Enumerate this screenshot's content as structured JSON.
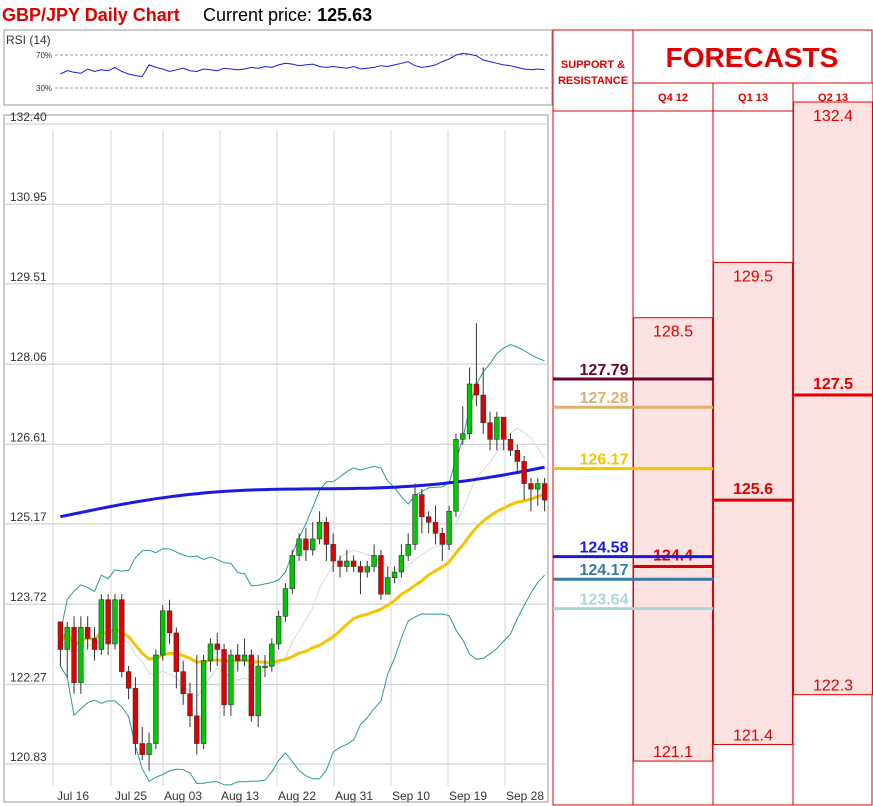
{
  "header": {
    "title": "GBP/JPY Daily Chart",
    "price_label": "Current price:",
    "price_value": "125.63"
  },
  "colors": {
    "up": "#00c800",
    "down": "#e00000",
    "sma_long": "#1a1ae6",
    "sma_short": "#f5c400",
    "bollinger": "#2a9a9a",
    "forecast_fill": "#fde2e2",
    "forecast_border": "#e00000"
  },
  "chart_data": [
    {
      "type": "candlestick",
      "title": "GBP/JPY Daily Chart",
      "ylim": [
        120.6,
        132.4
      ],
      "y_ticks": [
        "132.40",
        "130.95",
        "129.51",
        "128.06",
        "126.61",
        "125.17",
        "123.72",
        "122.27",
        "120.83"
      ],
      "x_ticks": [
        "Jul 16",
        "Jul 25",
        "Aug 03",
        "Aug 13",
        "Aug 22",
        "Aug 31",
        "Sep 10",
        "Sep 19",
        "Sep 28"
      ],
      "candles": [
        [
          123.4,
          122.9,
          123.4,
          122.6
        ],
        [
          122.9,
          123.3,
          123.4,
          122.4
        ],
        [
          123.3,
          122.3,
          123.5,
          122.1
        ],
        [
          122.3,
          123.3,
          123.5,
          122.1
        ],
        [
          123.3,
          123.1,
          123.5,
          122.9
        ],
        [
          123.1,
          122.9,
          123.3,
          122.7
        ],
        [
          122.9,
          123.8,
          123.9,
          122.8
        ],
        [
          123.8,
          123.0,
          123.9,
          122.8
        ],
        [
          123.0,
          123.8,
          123.9,
          122.9
        ],
        [
          123.8,
          122.5,
          123.9,
          122.4
        ],
        [
          122.5,
          122.2,
          122.6,
          122.0
        ],
        [
          122.2,
          121.2,
          122.4,
          121.0
        ],
        [
          121.2,
          121.0,
          121.5,
          120.9
        ],
        [
          121.0,
          121.2,
          121.4,
          120.7
        ],
        [
          121.2,
          122.8,
          122.9,
          121.1
        ],
        [
          122.8,
          123.6,
          123.7,
          122.7
        ],
        [
          123.6,
          123.2,
          123.8,
          123.0
        ],
        [
          123.2,
          122.5,
          123.3,
          122.2
        ],
        [
          122.5,
          122.1,
          122.7,
          121.9
        ],
        [
          122.1,
          121.7,
          122.3,
          121.5
        ],
        [
          121.7,
          121.2,
          122.8,
          121.0
        ],
        [
          121.2,
          122.7,
          122.8,
          121.1
        ],
        [
          122.7,
          123.0,
          123.1,
          122.5
        ],
        [
          123.0,
          122.9,
          123.2,
          122.6
        ],
        [
          122.9,
          121.9,
          123.0,
          121.7
        ],
        [
          121.9,
          122.8,
          122.9,
          121.7
        ],
        [
          122.8,
          122.7,
          123.0,
          122.5
        ],
        [
          122.7,
          122.8,
          123.1,
          122.6
        ],
        [
          122.8,
          121.7,
          122.9,
          121.6
        ],
        [
          121.7,
          122.6,
          122.8,
          121.5
        ],
        [
          122.6,
          122.6,
          122.8,
          122.4
        ],
        [
          122.6,
          123.0,
          123.1,
          122.5
        ],
        [
          123.0,
          123.5,
          123.6,
          122.9
        ],
        [
          123.5,
          124.0,
          124.1,
          123.4
        ],
        [
          124.0,
          124.6,
          124.7,
          123.9
        ],
        [
          124.6,
          124.9,
          125.0,
          124.5
        ],
        [
          124.9,
          124.7,
          125.1,
          124.5
        ],
        [
          124.7,
          124.9,
          125.2,
          124.6
        ],
        [
          124.9,
          125.2,
          125.4,
          124.8
        ],
        [
          125.2,
          124.8,
          125.3,
          124.5
        ],
        [
          124.8,
          124.5,
          125.0,
          124.3
        ],
        [
          124.5,
          124.4,
          124.6,
          124.2
        ],
        [
          124.4,
          124.5,
          124.7,
          124.3
        ],
        [
          124.5,
          124.4,
          124.6,
          124.3
        ],
        [
          124.4,
          124.3,
          124.5,
          123.9
        ],
        [
          124.3,
          124.4,
          124.5,
          124.2
        ],
        [
          124.4,
          124.6,
          124.8,
          124.3
        ],
        [
          124.6,
          123.9,
          124.7,
          123.8
        ],
        [
          123.9,
          124.2,
          124.4,
          124.0
        ],
        [
          124.2,
          124.3,
          124.4,
          124.1
        ],
        [
          124.3,
          124.6,
          124.8,
          124.2
        ],
        [
          124.6,
          124.8,
          125.0,
          124.5
        ],
        [
          124.8,
          125.7,
          125.9,
          124.7
        ],
        [
          125.7,
          125.3,
          125.8,
          125.0
        ],
        [
          125.3,
          125.2,
          125.4,
          125.0
        ],
        [
          125.2,
          125.0,
          125.5,
          124.8
        ],
        [
          125.0,
          124.8,
          125.1,
          124.5
        ],
        [
          124.8,
          125.4,
          125.5,
          124.7
        ],
        [
          125.4,
          126.7,
          126.8,
          125.3
        ],
        [
          126.7,
          126.8,
          127.3,
          126.6
        ],
        [
          126.8,
          127.7,
          128.0,
          126.7
        ],
        [
          127.7,
          127.5,
          128.8,
          127.3
        ],
        [
          127.5,
          127.0,
          128.0,
          126.8
        ],
        [
          127.0,
          126.7,
          127.2,
          126.5
        ],
        [
          126.7,
          127.1,
          127.2,
          126.5
        ],
        [
          127.1,
          126.7,
          127.0,
          126.5
        ],
        [
          126.7,
          126.5,
          126.8,
          126.4
        ],
        [
          126.5,
          126.3,
          126.6,
          126.1
        ],
        [
          126.3,
          125.9,
          126.4,
          125.6
        ],
        [
          125.9,
          125.8,
          126.0,
          125.4
        ],
        [
          125.8,
          125.9,
          126.0,
          125.5
        ],
        [
          125.9,
          125.6,
          126.0,
          125.4
        ]
      ],
      "rsi": {
        "label": "RSI (14)",
        "levels": [
          "70%",
          "30%"
        ],
        "values": [
          47,
          51,
          49,
          48,
          53,
          50,
          52,
          51,
          55,
          50,
          47,
          45,
          44,
          58,
          55,
          53,
          50,
          52,
          54,
          51,
          50,
          53,
          52,
          51,
          54,
          53,
          52,
          53,
          55,
          54,
          56,
          55,
          58,
          60,
          59,
          57,
          58,
          59,
          56,
          55,
          56,
          55,
          54,
          56,
          53,
          54,
          55,
          57,
          56,
          58,
          60,
          62,
          57,
          55,
          56,
          58,
          62,
          65,
          70,
          72,
          71,
          69,
          64,
          62,
          60,
          58,
          57,
          55,
          53,
          52,
          53,
          52
        ]
      },
      "indicators": [
        "sma_long",
        "sma_short",
        "bollinger_upper",
        "bollinger_lower"
      ]
    },
    {
      "type": "table",
      "title": "FORECASTS",
      "sr_header": [
        "SUPPORT &",
        "RESISTANCE"
      ],
      "columns": [
        "Q4 12",
        "Q1 13",
        "Q2 13"
      ],
      "levels": [
        {
          "value": "127.79",
          "color": "#6b0033"
        },
        {
          "value": "127.28",
          "color": "#e0b070"
        },
        {
          "value": "126.17",
          "color": "#f5c400"
        },
        {
          "value": "124.58",
          "color": "#1a1ae6"
        },
        {
          "value": "124.17",
          "color": "#3a7aa8"
        },
        {
          "value": "123.64",
          "color": "#a8d8d8"
        }
      ],
      "forecasts": [
        {
          "column": "Q4 12",
          "high": "128.5",
          "mid": "124.4",
          "low": "121.1"
        },
        {
          "column": "Q1 13",
          "high": "129.5",
          "mid": "125.6",
          "low": "121.4"
        },
        {
          "column": "Q2 13",
          "high": "132.4",
          "mid": "127.5",
          "low": "122.3"
        }
      ]
    }
  ]
}
